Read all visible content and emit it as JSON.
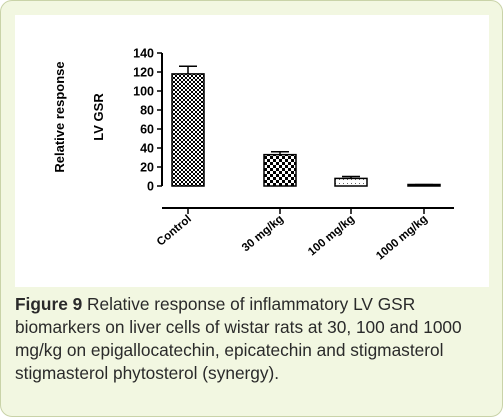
{
  "chart_data": {
    "type": "bar",
    "ylabel_lines": [
      "Relative response",
      "LV GSR"
    ],
    "categories": [
      "Control",
      "30 mg/kg",
      "100 mg/kg",
      "1000 mg/kg"
    ],
    "values": [
      118,
      33,
      8,
      1
    ],
    "errors": [
      8,
      3,
      2,
      0.5
    ],
    "ylim": [
      0,
      140
    ],
    "yticks": [
      0,
      20,
      40,
      60,
      80,
      100,
      120,
      140
    ],
    "patterns": [
      "checker-fine",
      "checker-coarse",
      "hatch-light",
      "solid-white"
    ],
    "grid": false
  },
  "caption": {
    "label": "Figure 9",
    "text": " Relative response of inflammatory LV GSR biomarkers on liver cells of wistar rats at 30, 100 and 1000 mg/kg on epigallocatechin, epicatechin and stigmasterol stigmasterol phytosterol (synergy)."
  },
  "colors": {
    "panel_background": "#f2f7e1",
    "plot_background": "#ffffff",
    "ink": "#000000"
  }
}
